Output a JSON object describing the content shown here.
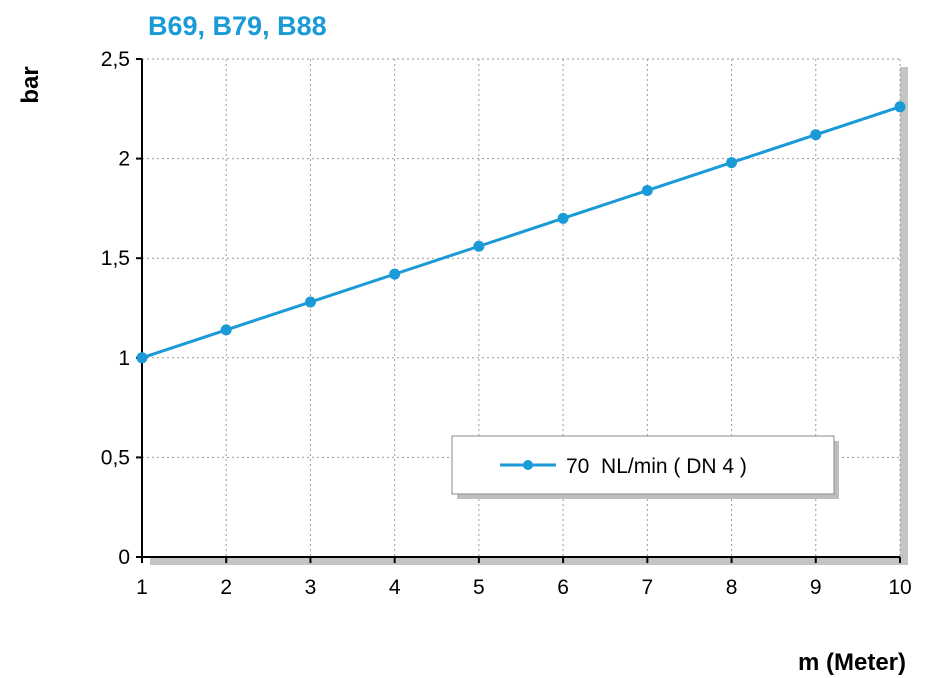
{
  "chart_data": {
    "type": "line",
    "title": "B69, B79, B88",
    "ylabel": "bar",
    "xlabel": "m (Meter)",
    "x": [
      1,
      2,
      3,
      4,
      5,
      6,
      7,
      8,
      9,
      10
    ],
    "xticks": [
      "1",
      "2",
      "3",
      "4",
      "5",
      "6",
      "7",
      "8",
      "9",
      "10"
    ],
    "yticks": [
      "0",
      "0,5",
      "1",
      "1,5",
      "2",
      "2,5"
    ],
    "ytick_values": [
      0,
      0.5,
      1,
      1.5,
      2,
      2.5
    ],
    "xlim": [
      1,
      10
    ],
    "ylim": [
      0,
      2.5
    ],
    "grid": true,
    "legend_position": "bottom-right",
    "series": [
      {
        "name": "70  NL/min ( DN 4 )",
        "color": "#1a9ad6",
        "values": [
          1.0,
          1.14,
          1.28,
          1.42,
          1.56,
          1.7,
          1.84,
          1.98,
          2.12,
          2.26
        ]
      }
    ]
  },
  "colors": {
    "title": "#1a9ad6",
    "series": "#1a9ad6",
    "grid": "#9a9a9a",
    "axis": "#000000"
  }
}
